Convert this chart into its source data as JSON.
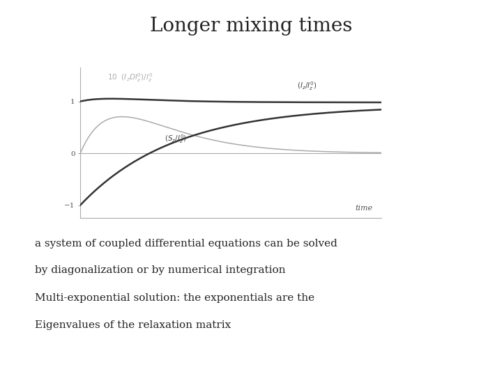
{
  "title": "Longer mixing times",
  "title_fontsize": 20,
  "title_font": "serif",
  "body_text": [
    "a system of coupled differential equations can be solved",
    "by diagonalization or by numerical integration",
    "Multi-exponential solution: the exponentials are the",
    "Eigenvalues of the relaxation matrix"
  ],
  "body_fontsize": 11,
  "body_font": "serif",
  "background_color": "#ffffff",
  "plot_bg_color": "#ffffff",
  "axes_color": "#aaaaaa",
  "line_Iz_color": "#333333",
  "line_Sz_color": "#333333",
  "line_IzD_color": "#aaaaaa",
  "ylim": [
    -1.25,
    1.65
  ],
  "xlim": [
    0,
    10
  ],
  "yticks": [
    -1.0,
    0.0,
    1.0
  ],
  "label_time": "time"
}
